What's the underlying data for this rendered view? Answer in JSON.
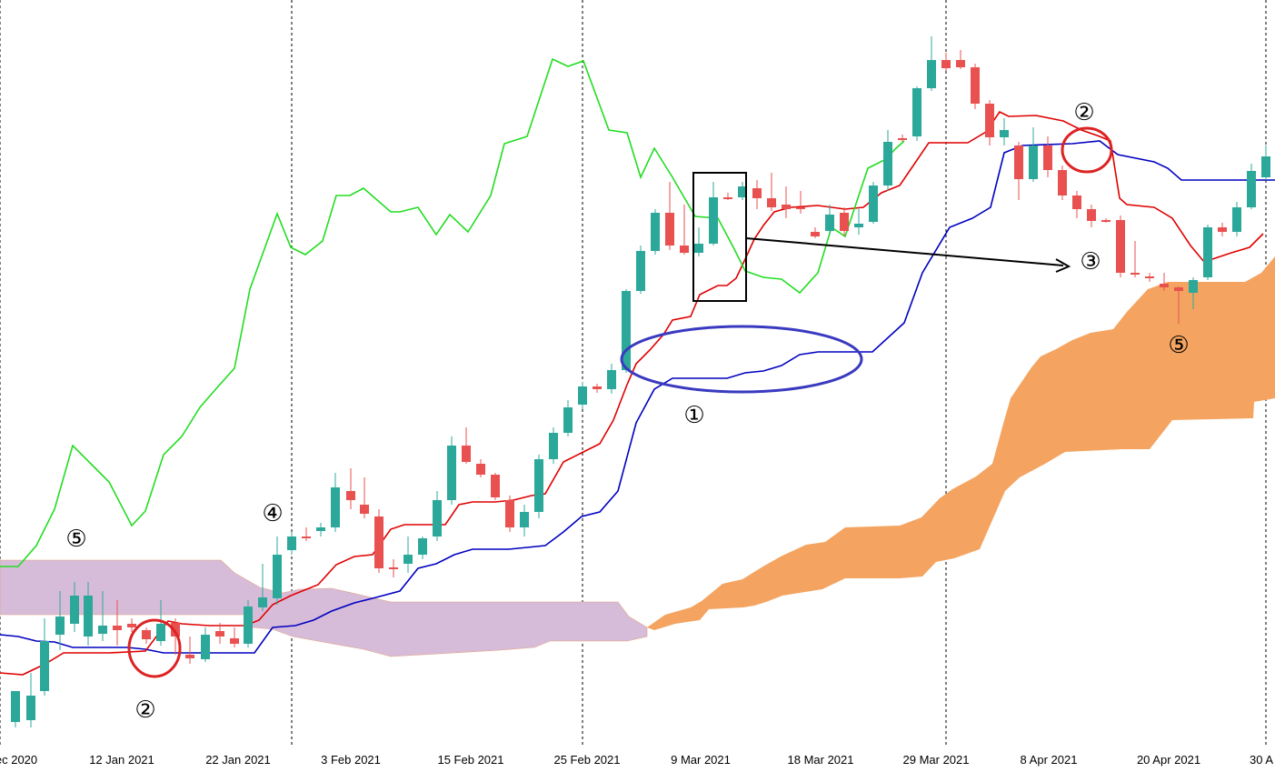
{
  "chart_data": {
    "type": "candlestick",
    "title": "",
    "x_tick_labels": [
      "ec 2020",
      "12 Jan 2021",
      "22 Jan 2021",
      "3 Feb 2021",
      "15 Feb 2021",
      "25 Feb 2021",
      "9 Mar 2021",
      "18 Mar 2021",
      "29 Mar 2021",
      "8 Apr 2021",
      "20 Apr 2021",
      "30 A"
    ],
    "grid": "vertical dashed period separators",
    "indicator": "Ichimoku Kinko Hyo",
    "colors": {
      "bull_candle": "#2ca89a",
      "bear_candle": "#e8514f",
      "tenkan_line": "#e00000",
      "kijun_line": "#0000c0",
      "chikou_line": "#22dd22",
      "cloud_bearish": "#d7bcd9",
      "cloud_bullish": "#f4a460",
      "ellipse_blue": "#3a3ac0",
      "circle_red": "#dd2222",
      "separator": "#000000"
    },
    "annotations": {
      "one": "①",
      "two": "②",
      "three": "③",
      "four": "④",
      "five": "⑤"
    }
  }
}
